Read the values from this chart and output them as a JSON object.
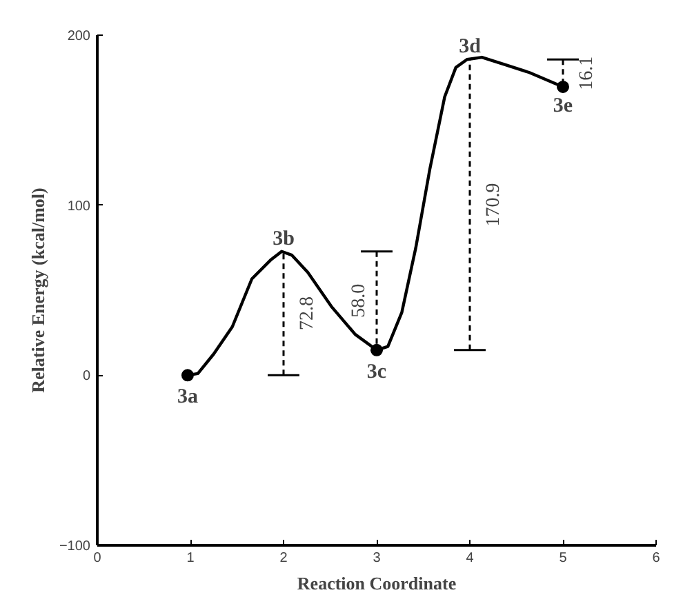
{
  "chart_data": {
    "type": "line",
    "xlabel": "Reaction Coordinate",
    "ylabel": "Relative Energy (kcal/mol)",
    "xlim": [
      0,
      6
    ],
    "ylim": [
      -100,
      200
    ],
    "xticks": [
      0,
      1,
      2,
      3,
      4,
      5,
      6
    ],
    "yticks": [
      -100,
      0,
      100,
      200
    ],
    "grid": false,
    "series": [
      {
        "color": "#000000",
        "x": [
          0.97,
          1.08,
          1.25,
          1.45,
          1.66,
          1.86,
          1.98,
          2.09,
          2.26,
          2.52,
          2.77,
          3.0,
          3.12,
          3.27,
          3.42,
          3.57,
          3.73,
          3.85,
          3.97,
          4.13,
          4.38,
          4.64,
          5.0
        ],
        "values": [
          0,
          1,
          12.5,
          28.5,
          56.7,
          67.7,
          72.8,
          70.6,
          60.5,
          40,
          24,
          14.8,
          16.9,
          37,
          75,
          121,
          163.7,
          181,
          185.7,
          187,
          182.6,
          178,
          169.6
        ],
        "line_style": "solid"
      },
      {
        "type": "scatter",
        "color": "#000000",
        "x": [
          0.97,
          3.0,
          5.0
        ],
        "values": [
          0,
          14.8,
          169.6
        ],
        "marker": "circle"
      },
      {
        "color": "#000000",
        "x": [
          2,
          2
        ],
        "values": [
          0,
          72.8
        ],
        "line_style": "dashed"
      },
      {
        "color": "#000000",
        "x": [
          1.83,
          2.17
        ],
        "values": [
          0,
          0
        ],
        "line_style": "solid"
      },
      {
        "color": "#000000",
        "x": [
          3,
          3
        ],
        "values": [
          72.8,
          14.8
        ],
        "line_style": "dashed"
      },
      {
        "color": "#000000",
        "x": [
          2.83,
          3.17
        ],
        "values": [
          72.8,
          72.8
        ],
        "line_style": "solid"
      },
      {
        "color": "#000000",
        "x": [
          4,
          4
        ],
        "values": [
          14.8,
          185.7
        ],
        "line_style": "dashed"
      },
      {
        "color": "#000000",
        "x": [
          3.83,
          4.17
        ],
        "values": [
          14.8,
          14.8
        ],
        "line_style": "solid"
      },
      {
        "color": "#000000",
        "x": [
          5,
          5
        ],
        "values": [
          185.7,
          169.6
        ],
        "line_style": "dashed"
      },
      {
        "color": "#000000",
        "x": [
          4.83,
          5.17
        ],
        "values": [
          185.7,
          185.7
        ],
        "line_style": "solid"
      }
    ],
    "annotations": [
      {
        "text": "3a",
        "x": 0.97,
        "y": 0
      },
      {
        "text": "3b",
        "x": 2,
        "y": 72.8
      },
      {
        "text": "3c",
        "x": 3,
        "y": 14.8
      },
      {
        "text": "3d",
        "x": 4,
        "y": 185.7
      },
      {
        "text": "3e",
        "x": 5,
        "y": 169.6
      },
      {
        "text": "72.8",
        "x": 2,
        "y": 36.4
      },
      {
        "text": "58.0",
        "x": 3,
        "y": 43.8
      },
      {
        "text": "170.9",
        "x": 4,
        "y": 100.25
      },
      {
        "text": "16.1",
        "x": 5,
        "y": 177.65
      }
    ]
  }
}
